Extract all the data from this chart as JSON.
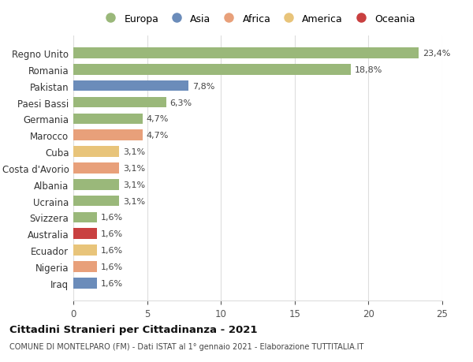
{
  "categories": [
    "Iraq",
    "Nigeria",
    "Ecuador",
    "Australia",
    "Svizzera",
    "Ucraina",
    "Albania",
    "Costa d'Avorio",
    "Cuba",
    "Marocco",
    "Germania",
    "Paesi Bassi",
    "Pakistan",
    "Romania",
    "Regno Unito"
  ],
  "values": [
    1.6,
    1.6,
    1.6,
    1.6,
    1.6,
    3.1,
    3.1,
    3.1,
    3.1,
    4.7,
    4.7,
    6.3,
    7.8,
    18.8,
    23.4
  ],
  "bar_colors": [
    "#6b8cba",
    "#e8a07a",
    "#e8c47a",
    "#c94040",
    "#9ab87a",
    "#9ab87a",
    "#9ab87a",
    "#e8a07a",
    "#e8c47a",
    "#e8a07a",
    "#9ab87a",
    "#9ab87a",
    "#6b8cba",
    "#9ab87a",
    "#9ab87a"
  ],
  "labels": [
    "1,6%",
    "1,6%",
    "1,6%",
    "1,6%",
    "1,6%",
    "3,1%",
    "3,1%",
    "3,1%",
    "3,1%",
    "4,7%",
    "4,7%",
    "6,3%",
    "7,8%",
    "18,8%",
    "23,4%"
  ],
  "legend_names": [
    "Europa",
    "Asia",
    "Africa",
    "America",
    "Oceania"
  ],
  "legend_colors": [
    "#9ab87a",
    "#6b8cba",
    "#e8a07a",
    "#e8c47a",
    "#c94040"
  ],
  "title": "Cittadini Stranieri per Cittadinanza - 2021",
  "subtitle": "COMUNE DI MONTELPARO (FM) - Dati ISTAT al 1° gennaio 2021 - Elaborazione TUTTITALIA.IT",
  "xlim": [
    0,
    25
  ],
  "xticks": [
    0,
    5,
    10,
    15,
    20,
    25
  ],
  "background_color": "#ffffff",
  "grid_color": "#dddddd"
}
